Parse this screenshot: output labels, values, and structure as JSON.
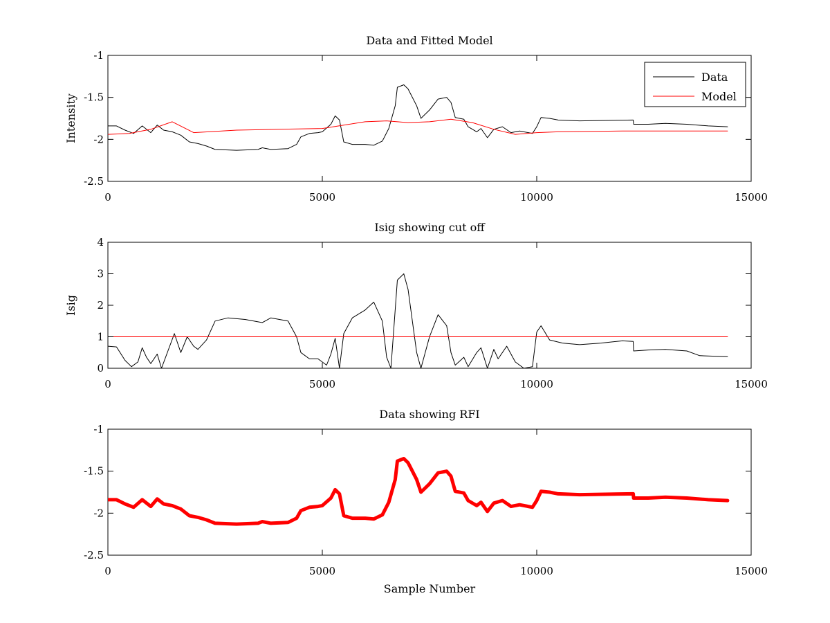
{
  "chart_data": [
    {
      "type": "line",
      "title": "Data and Fitted Model",
      "xlabel": "",
      "ylabel": "Intensity",
      "xlim": [
        0,
        15000
      ],
      "ylim": [
        -2.5,
        -1
      ],
      "xticks": [
        0,
        5000,
        10000,
        15000
      ],
      "yticks": [
        -2.5,
        -2,
        -1.5,
        -1
      ],
      "xtick_labels": [
        "0",
        "5000",
        "10000",
        "15000"
      ],
      "ytick_labels": [
        "-2.5",
        "-2",
        "-1.5",
        "-1"
      ],
      "grid": false,
      "legend_position": "top-right",
      "series": [
        {
          "name": "Data",
          "color": "#000000",
          "points": [
            [
              0,
              -1.84
            ],
            [
              200,
              -1.84
            ],
            [
              400,
              -1.89
            ],
            [
              600,
              -1.93
            ],
            [
              800,
              -1.84
            ],
            [
              1000,
              -1.92
            ],
            [
              1150,
              -1.83
            ],
            [
              1300,
              -1.89
            ],
            [
              1500,
              -1.91
            ],
            [
              1700,
              -1.95
            ],
            [
              1900,
              -2.03
            ],
            [
              2100,
              -2.05
            ],
            [
              2300,
              -2.08
            ],
            [
              2500,
              -2.12
            ],
            [
              3000,
              -2.13
            ],
            [
              3500,
              -2.12
            ],
            [
              3600,
              -2.1
            ],
            [
              3800,
              -2.12
            ],
            [
              4200,
              -2.11
            ],
            [
              4400,
              -2.06
            ],
            [
              4500,
              -1.97
            ],
            [
              4700,
              -1.93
            ],
            [
              4900,
              -1.92
            ],
            [
              5000,
              -1.91
            ],
            [
              5200,
              -1.82
            ],
            [
              5300,
              -1.72
            ],
            [
              5400,
              -1.77
            ],
            [
              5500,
              -2.03
            ],
            [
              5700,
              -2.06
            ],
            [
              6000,
              -2.06
            ],
            [
              6200,
              -2.07
            ],
            [
              6400,
              -2.02
            ],
            [
              6550,
              -1.87
            ],
            [
              6700,
              -1.6
            ],
            [
              6750,
              -1.38
            ],
            [
              6900,
              -1.35
            ],
            [
              7000,
              -1.4
            ],
            [
              7200,
              -1.6
            ],
            [
              7300,
              -1.75
            ],
            [
              7500,
              -1.65
            ],
            [
              7700,
              -1.52
            ],
            [
              7900,
              -1.5
            ],
            [
              8000,
              -1.56
            ],
            [
              8100,
              -1.74
            ],
            [
              8300,
              -1.76
            ],
            [
              8400,
              -1.85
            ],
            [
              8600,
              -1.91
            ],
            [
              8700,
              -1.87
            ],
            [
              8850,
              -1.98
            ],
            [
              9000,
              -1.88
            ],
            [
              9200,
              -1.85
            ],
            [
              9400,
              -1.92
            ],
            [
              9600,
              -1.9
            ],
            [
              9900,
              -1.93
            ],
            [
              10000,
              -1.85
            ],
            [
              10100,
              -1.74
            ],
            [
              10300,
              -1.75
            ],
            [
              10500,
              -1.77
            ],
            [
              11000,
              -1.78
            ],
            [
              12250,
              -1.77
            ],
            [
              12260,
              -1.82
            ],
            [
              12600,
              -1.82
            ],
            [
              13000,
              -1.81
            ],
            [
              13500,
              -1.82
            ],
            [
              14000,
              -1.84
            ],
            [
              14450,
              -1.85
            ]
          ]
        },
        {
          "name": "Model",
          "color": "#ff0000",
          "points": [
            [
              0,
              -1.94
            ],
            [
              500,
              -1.93
            ],
            [
              1000,
              -1.88
            ],
            [
              1500,
              -1.79
            ],
            [
              2000,
              -1.92
            ],
            [
              3000,
              -1.89
            ],
            [
              4000,
              -1.88
            ],
            [
              5000,
              -1.87
            ],
            [
              5500,
              -1.83
            ],
            [
              6000,
              -1.79
            ],
            [
              6500,
              -1.78
            ],
            [
              7000,
              -1.8
            ],
            [
              7500,
              -1.79
            ],
            [
              8000,
              -1.76
            ],
            [
              8500,
              -1.8
            ],
            [
              9000,
              -1.88
            ],
            [
              9500,
              -1.94
            ],
            [
              10000,
              -1.92
            ],
            [
              10500,
              -1.91
            ],
            [
              12000,
              -1.9
            ],
            [
              14450,
              -1.9
            ]
          ]
        }
      ]
    },
    {
      "type": "line",
      "title": "Isig showing cut off",
      "xlabel": "",
      "ylabel": "Isig",
      "xlim": [
        0,
        15000
      ],
      "ylim": [
        0,
        4
      ],
      "xticks": [
        0,
        5000,
        10000,
        15000
      ],
      "yticks": [
        0,
        1,
        2,
        3,
        4
      ],
      "xtick_labels": [
        "0",
        "5000",
        "10000",
        "15000"
      ],
      "ytick_labels": [
        "0",
        "1",
        "2",
        "3",
        "4"
      ],
      "grid": false,
      "series": [
        {
          "color": "#000000",
          "points": [
            [
              0,
              0.7
            ],
            [
              200,
              0.68
            ],
            [
              400,
              0.25
            ],
            [
              550,
              0.05
            ],
            [
              700,
              0.2
            ],
            [
              800,
              0.65
            ],
            [
              900,
              0.35
            ],
            [
              1000,
              0.15
            ],
            [
              1150,
              0.45
            ],
            [
              1250,
              0.0
            ],
            [
              1400,
              0.55
            ],
            [
              1550,
              1.1
            ],
            [
              1700,
              0.5
            ],
            [
              1850,
              1.0
            ],
            [
              2000,
              0.7
            ],
            [
              2100,
              0.6
            ],
            [
              2300,
              0.9
            ],
            [
              2500,
              1.5
            ],
            [
              2800,
              1.6
            ],
            [
              3200,
              1.55
            ],
            [
              3600,
              1.45
            ],
            [
              3800,
              1.6
            ],
            [
              4200,
              1.5
            ],
            [
              4400,
              1.0
            ],
            [
              4500,
              0.5
            ],
            [
              4700,
              0.3
            ],
            [
              4900,
              0.3
            ],
            [
              5100,
              0.1
            ],
            [
              5200,
              0.45
            ],
            [
              5300,
              0.95
            ],
            [
              5400,
              0.0
            ],
            [
              5500,
              1.1
            ],
            [
              5700,
              1.6
            ],
            [
              6000,
              1.85
            ],
            [
              6200,
              2.1
            ],
            [
              6400,
              1.5
            ],
            [
              6500,
              0.35
            ],
            [
              6600,
              0.0
            ],
            [
              6750,
              2.8
            ],
            [
              6900,
              3.0
            ],
            [
              7000,
              2.5
            ],
            [
              7200,
              0.5
            ],
            [
              7300,
              0.0
            ],
            [
              7500,
              1.0
            ],
            [
              7700,
              1.7
            ],
            [
              7900,
              1.35
            ],
            [
              8000,
              0.5
            ],
            [
              8100,
              0.1
            ],
            [
              8300,
              0.35
            ],
            [
              8400,
              0.05
            ],
            [
              8600,
              0.5
            ],
            [
              8700,
              0.65
            ],
            [
              8850,
              0.0
            ],
            [
              9000,
              0.6
            ],
            [
              9100,
              0.3
            ],
            [
              9300,
              0.7
            ],
            [
              9500,
              0.2
            ],
            [
              9700,
              0.0
            ],
            [
              9900,
              0.05
            ],
            [
              10000,
              1.15
            ],
            [
              10100,
              1.35
            ],
            [
              10300,
              0.9
            ],
            [
              10600,
              0.8
            ],
            [
              11000,
              0.75
            ],
            [
              11500,
              0.8
            ],
            [
              12000,
              0.87
            ],
            [
              12250,
              0.85
            ],
            [
              12260,
              0.55
            ],
            [
              12600,
              0.58
            ],
            [
              13000,
              0.6
            ],
            [
              13500,
              0.55
            ],
            [
              13800,
              0.4
            ],
            [
              14450,
              0.37
            ]
          ]
        },
        {
          "color": "#ff0000",
          "points": [
            [
              0,
              1
            ],
            [
              14450,
              1
            ]
          ]
        }
      ]
    },
    {
      "type": "line",
      "title": "Data showing RFI",
      "xlabel": "Sample Number",
      "ylabel": "",
      "xlim": [
        0,
        15000
      ],
      "ylim": [
        -2.5,
        -1
      ],
      "xticks": [
        0,
        5000,
        10000,
        15000
      ],
      "yticks": [
        -2.5,
        -2,
        -1.5,
        -1
      ],
      "xtick_labels": [
        "0",
        "5000",
        "10000",
        "15000"
      ],
      "ytick_labels": [
        "-2.5",
        "-2",
        "-1.5",
        "-1"
      ],
      "grid": false,
      "series": [
        {
          "color": "#ff0000",
          "linewidth": "thick",
          "points": [
            [
              0,
              -1.84
            ],
            [
              200,
              -1.84
            ],
            [
              400,
              -1.89
            ],
            [
              600,
              -1.93
            ],
            [
              800,
              -1.84
            ],
            [
              1000,
              -1.92
            ],
            [
              1150,
              -1.83
            ],
            [
              1300,
              -1.89
            ],
            [
              1500,
              -1.91
            ],
            [
              1700,
              -1.95
            ],
            [
              1900,
              -2.03
            ],
            [
              2100,
              -2.05
            ],
            [
              2300,
              -2.08
            ],
            [
              2500,
              -2.12
            ],
            [
              3000,
              -2.13
            ],
            [
              3500,
              -2.12
            ],
            [
              3600,
              -2.1
            ],
            [
              3800,
              -2.12
            ],
            [
              4200,
              -2.11
            ],
            [
              4400,
              -2.06
            ],
            [
              4500,
              -1.97
            ],
            [
              4700,
              -1.93
            ],
            [
              4900,
              -1.92
            ],
            [
              5000,
              -1.91
            ],
            [
              5200,
              -1.82
            ],
            [
              5300,
              -1.72
            ],
            [
              5400,
              -1.77
            ],
            [
              5500,
              -2.03
            ],
            [
              5700,
              -2.06
            ],
            [
              6000,
              -2.06
            ],
            [
              6200,
              -2.07
            ],
            [
              6400,
              -2.02
            ],
            [
              6550,
              -1.87
            ],
            [
              6700,
              -1.6
            ],
            [
              6750,
              -1.38
            ],
            [
              6900,
              -1.35
            ],
            [
              7000,
              -1.4
            ],
            [
              7200,
              -1.6
            ],
            [
              7300,
              -1.75
            ],
            [
              7500,
              -1.65
            ],
            [
              7700,
              -1.52
            ],
            [
              7900,
              -1.5
            ],
            [
              8000,
              -1.56
            ],
            [
              8100,
              -1.74
            ],
            [
              8300,
              -1.76
            ],
            [
              8400,
              -1.85
            ],
            [
              8600,
              -1.91
            ],
            [
              8700,
              -1.87
            ],
            [
              8850,
              -1.98
            ],
            [
              9000,
              -1.88
            ],
            [
              9200,
              -1.85
            ],
            [
              9400,
              -1.92
            ],
            [
              9600,
              -1.9
            ],
            [
              9900,
              -1.93
            ],
            [
              10000,
              -1.85
            ],
            [
              10100,
              -1.74
            ],
            [
              10300,
              -1.75
            ],
            [
              10500,
              -1.77
            ],
            [
              11000,
              -1.78
            ],
            [
              12250,
              -1.77
            ],
            [
              12260,
              -1.82
            ],
            [
              12600,
              -1.82
            ],
            [
              13000,
              -1.81
            ],
            [
              13500,
              -1.82
            ],
            [
              14000,
              -1.84
            ],
            [
              14450,
              -1.85
            ]
          ]
        }
      ]
    }
  ]
}
